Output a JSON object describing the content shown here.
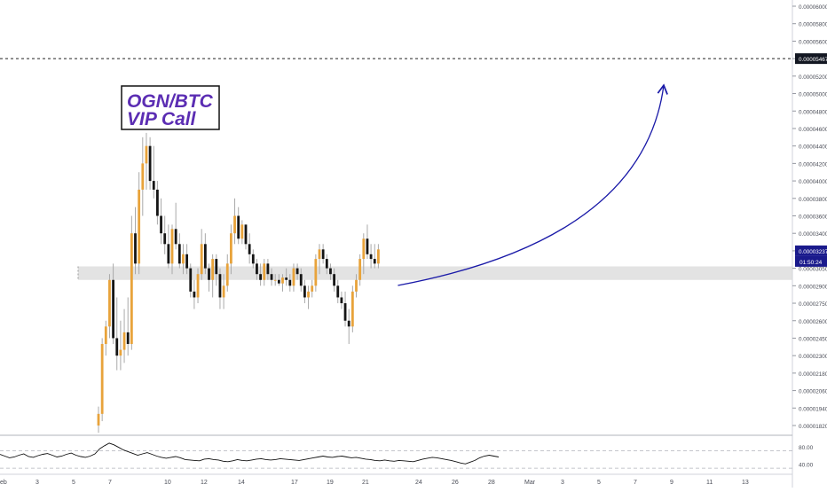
{
  "chart_data": {
    "type": "candlestick",
    "annotation": "OGN/BTC\nVIP Call",
    "price_axis_labels": [
      "0.00006000",
      "0.00005800",
      "0.00005600",
      "0.00005467",
      "0.00005200",
      "0.00005000",
      "0.00004800",
      "0.00004600",
      "0.00004400",
      "0.00004200",
      "0.00004000",
      "0.00003800",
      "0.00003600",
      "0.00003400",
      "0.00003237",
      "0.00003050",
      "0.00002900",
      "0.00002750",
      "0.00002600",
      "0.00002450",
      "0.00002300",
      "0.00002180",
      "0.00002060",
      "0.00001940",
      "0.00001820"
    ],
    "current_price": "0.00003237",
    "countdown": "01:50:24",
    "target_price": "0.00005467",
    "date_labels": [
      "eb",
      "3",
      "5",
      "7",
      "10",
      "12",
      "14",
      "17",
      "19",
      "21",
      "24",
      "26",
      "28",
      "Mar",
      "3",
      "5",
      "7",
      "9",
      "11",
      "13"
    ],
    "support_zone": [
      2.95e-05,
      3.07e-05
    ],
    "candles": [
      {
        "o": 1.82,
        "h": 1.95,
        "l": 1.77,
        "c": 1.9
      },
      {
        "o": 1.9,
        "h": 2.45,
        "l": 1.85,
        "c": 2.4
      },
      {
        "o": 2.4,
        "h": 2.6,
        "l": 2.3,
        "c": 2.55
      },
      {
        "o": 2.55,
        "h": 3.0,
        "l": 2.45,
        "c": 2.95
      },
      {
        "o": 2.95,
        "h": 3.1,
        "l": 2.4,
        "c": 2.45
      },
      {
        "o": 2.45,
        "h": 2.8,
        "l": 2.2,
        "c": 2.3
      },
      {
        "o": 2.3,
        "h": 2.6,
        "l": 2.2,
        "c": 2.35
      },
      {
        "o": 2.35,
        "h": 2.7,
        "l": 2.25,
        "c": 2.5
      },
      {
        "o": 2.5,
        "h": 2.8,
        "l": 2.3,
        "c": 2.4
      },
      {
        "o": 2.4,
        "h": 3.6,
        "l": 2.35,
        "c": 3.4
      },
      {
        "o": 3.4,
        "h": 3.7,
        "l": 3.0,
        "c": 3.1
      },
      {
        "o": 3.1,
        "h": 4.1,
        "l": 3.0,
        "c": 3.9
      },
      {
        "o": 3.9,
        "h": 4.5,
        "l": 3.6,
        "c": 4.2
      },
      {
        "o": 4.2,
        "h": 4.55,
        "l": 3.9,
        "c": 4.4
      },
      {
        "o": 4.4,
        "h": 4.5,
        "l": 3.9,
        "c": 4.0
      },
      {
        "o": 4.0,
        "h": 4.4,
        "l": 3.8,
        "c": 3.9
      },
      {
        "o": 3.9,
        "h": 4.0,
        "l": 3.5,
        "c": 3.6
      },
      {
        "o": 3.6,
        "h": 3.8,
        "l": 3.3,
        "c": 3.4
      },
      {
        "o": 3.4,
        "h": 3.6,
        "l": 3.2,
        "c": 3.3
      },
      {
        "o": 3.3,
        "h": 3.5,
        "l": 3.05,
        "c": 3.1
      },
      {
        "o": 3.1,
        "h": 3.5,
        "l": 3.0,
        "c": 3.45
      },
      {
        "o": 3.45,
        "h": 3.75,
        "l": 3.25,
        "c": 3.3
      },
      {
        "o": 3.3,
        "h": 3.4,
        "l": 3.05,
        "c": 3.1
      },
      {
        "o": 3.1,
        "h": 3.3,
        "l": 3.0,
        "c": 3.2
      },
      {
        "o": 3.2,
        "h": 3.3,
        "l": 3.0,
        "c": 3.05
      },
      {
        "o": 3.05,
        "h": 3.1,
        "l": 2.8,
        "c": 2.85
      },
      {
        "o": 2.85,
        "h": 2.95,
        "l": 2.7,
        "c": 2.8
      },
      {
        "o": 2.8,
        "h": 3.05,
        "l": 2.75,
        "c": 3.0
      },
      {
        "o": 3.0,
        "h": 3.45,
        "l": 2.95,
        "c": 3.3
      },
      {
        "o": 3.3,
        "h": 3.4,
        "l": 3.0,
        "c": 3.05
      },
      {
        "o": 3.05,
        "h": 3.1,
        "l": 2.85,
        "c": 2.95
      },
      {
        "o": 2.95,
        "h": 3.2,
        "l": 2.8,
        "c": 3.15
      },
      {
        "o": 3.15,
        "h": 3.2,
        "l": 2.9,
        "c": 3.0
      },
      {
        "o": 3.0,
        "h": 3.05,
        "l": 2.7,
        "c": 2.8
      },
      {
        "o": 2.8,
        "h": 3.0,
        "l": 2.7,
        "c": 2.9
      },
      {
        "o": 2.9,
        "h": 3.2,
        "l": 2.85,
        "c": 3.1
      },
      {
        "o": 3.1,
        "h": 3.5,
        "l": 3.0,
        "c": 3.4
      },
      {
        "o": 3.4,
        "h": 3.8,
        "l": 3.3,
        "c": 3.6
      },
      {
        "o": 3.6,
        "h": 3.7,
        "l": 3.3,
        "c": 3.35
      },
      {
        "o": 3.35,
        "h": 3.55,
        "l": 3.3,
        "c": 3.5
      },
      {
        "o": 3.5,
        "h": 3.5,
        "l": 3.25,
        "c": 3.3
      },
      {
        "o": 3.3,
        "h": 3.4,
        "l": 3.1,
        "c": 3.2
      },
      {
        "o": 3.2,
        "h": 3.25,
        "l": 3.05,
        "c": 3.1
      },
      {
        "o": 3.1,
        "h": 3.15,
        "l": 2.95,
        "c": 3.0
      },
      {
        "o": 3.0,
        "h": 3.1,
        "l": 2.9,
        "c": 2.95
      },
      {
        "o": 2.95,
        "h": 3.15,
        "l": 2.9,
        "c": 3.1
      },
      {
        "o": 3.1,
        "h": 3.15,
        "l": 2.95,
        "c": 3.0
      },
      {
        "o": 3.0,
        "h": 3.05,
        "l": 2.9,
        "c": 2.95
      },
      {
        "o": 2.95,
        "h": 3.0,
        "l": 2.9,
        "c": 2.95
      },
      {
        "o": 2.95,
        "h": 3.0,
        "l": 2.9,
        "c": 2.92
      },
      {
        "o": 2.92,
        "h": 3.0,
        "l": 2.85,
        "c": 2.97
      },
      {
        "o": 2.97,
        "h": 3.05,
        "l": 2.9,
        "c": 2.95
      },
      {
        "o": 2.95,
        "h": 3.0,
        "l": 2.85,
        "c": 2.9
      },
      {
        "o": 2.9,
        "h": 3.1,
        "l": 2.85,
        "c": 3.05
      },
      {
        "o": 3.05,
        "h": 3.1,
        "l": 2.95,
        "c": 3.0
      },
      {
        "o": 3.0,
        "h": 3.05,
        "l": 2.85,
        "c": 2.9
      },
      {
        "o": 2.9,
        "h": 2.95,
        "l": 2.75,
        "c": 2.8
      },
      {
        "o": 2.8,
        "h": 2.9,
        "l": 2.7,
        "c": 2.85
      },
      {
        "o": 2.85,
        "h": 2.95,
        "l": 2.8,
        "c": 2.9
      },
      {
        "o": 2.9,
        "h": 3.2,
        "l": 2.85,
        "c": 3.15
      },
      {
        "o": 3.15,
        "h": 3.3,
        "l": 3.0,
        "c": 3.25
      },
      {
        "o": 3.25,
        "h": 3.3,
        "l": 3.1,
        "c": 3.15
      },
      {
        "o": 3.15,
        "h": 3.2,
        "l": 3.0,
        "c": 3.05
      },
      {
        "o": 3.05,
        "h": 3.1,
        "l": 2.95,
        "c": 3.0
      },
      {
        "o": 3.0,
        "h": 3.05,
        "l": 2.85,
        "c": 2.9
      },
      {
        "o": 2.9,
        "h": 2.95,
        "l": 2.75,
        "c": 2.8
      },
      {
        "o": 2.8,
        "h": 2.85,
        "l": 2.7,
        "c": 2.75
      },
      {
        "o": 2.75,
        "h": 2.85,
        "l": 2.55,
        "c": 2.6
      },
      {
        "o": 2.6,
        "h": 2.7,
        "l": 2.4,
        "c": 2.55
      },
      {
        "o": 2.55,
        "h": 2.9,
        "l": 2.5,
        "c": 2.85
      },
      {
        "o": 2.85,
        "h": 3.0,
        "l": 2.8,
        "c": 2.95
      },
      {
        "o": 2.95,
        "h": 3.2,
        "l": 2.9,
        "c": 3.15
      },
      {
        "o": 3.15,
        "h": 3.4,
        "l": 3.0,
        "c": 3.35
      },
      {
        "o": 3.35,
        "h": 3.5,
        "l": 3.15,
        "c": 3.2
      },
      {
        "o": 3.2,
        "h": 3.3,
        "l": 3.05,
        "c": 3.15
      },
      {
        "o": 3.15,
        "h": 3.3,
        "l": 3.05,
        "c": 3.1
      },
      {
        "o": 3.1,
        "h": 3.3,
        "l": 3.05,
        "c": 3.25
      }
    ],
    "oscillator": {
      "labels": [
        "80.00",
        "40.00"
      ],
      "levels": [
        70,
        30
      ],
      "range": [
        20,
        100
      ],
      "values": [
        62,
        58,
        54,
        56,
        60,
        63,
        57,
        55,
        59,
        62,
        64,
        60,
        56,
        58,
        62,
        65,
        60,
        57,
        55,
        58,
        63,
        75,
        82,
        88,
        84,
        78,
        72,
        68,
        64,
        60,
        63,
        66,
        62,
        58,
        55,
        53,
        55,
        57,
        54,
        50,
        49,
        48,
        47,
        51,
        52,
        50,
        49,
        46,
        45,
        47,
        50,
        48,
        47,
        49,
        51,
        52,
        50,
        49,
        50,
        52,
        51,
        50,
        49,
        48,
        50,
        52,
        54,
        56,
        58,
        56,
        55,
        57,
        58,
        56,
        54,
        55,
        53,
        51,
        50,
        48,
        47,
        49,
        47,
        46,
        48,
        47,
        46,
        45,
        48,
        51,
        53,
        55,
        54,
        52,
        50,
        48,
        45,
        42,
        40,
        44,
        48,
        54,
        58,
        60,
        58,
        56
      ]
    },
    "arrow_target": "0.00005467"
  }
}
